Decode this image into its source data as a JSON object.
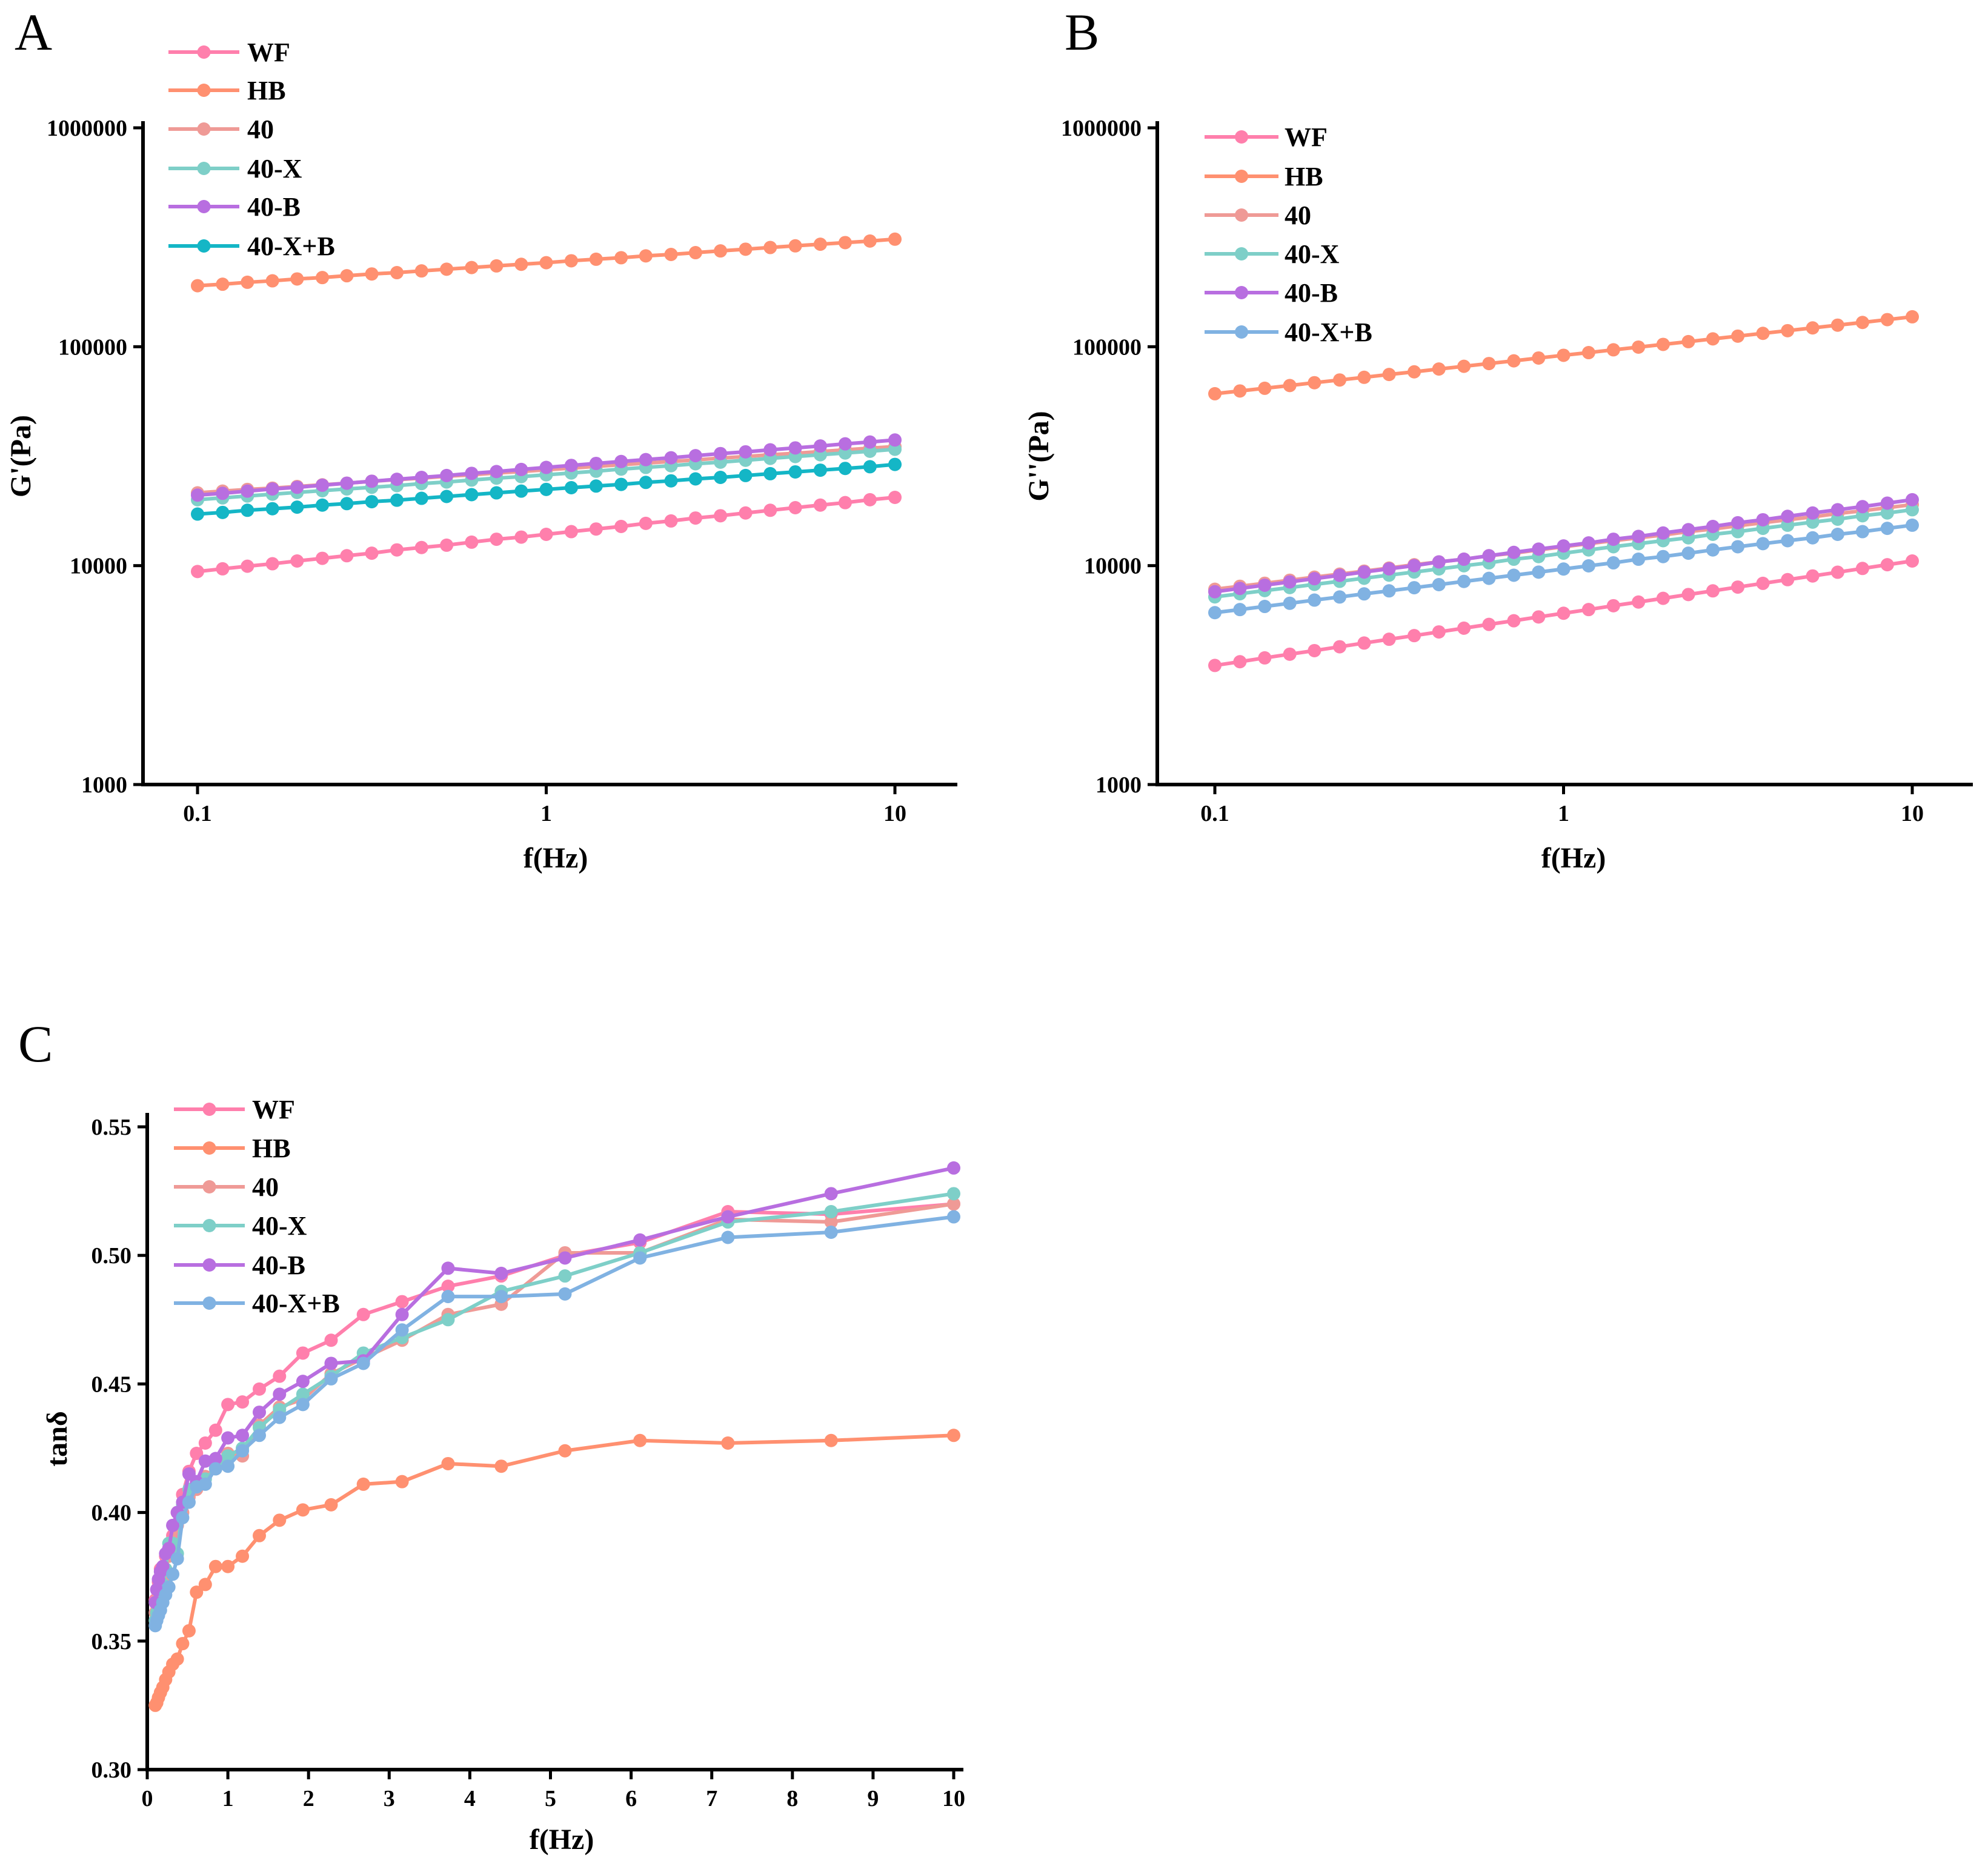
{
  "chart_data": [
    {
      "panel_label": "A",
      "type": "line",
      "xlabel": "f(Hz)",
      "ylabel": "G'(Pa)",
      "xscale": "log",
      "yscale": "log",
      "xlim": [
        0.1,
        10
      ],
      "ylim": [
        1000,
        1000000
      ],
      "xticks": [
        0.1,
        1,
        10
      ],
      "xtick_labels": [
        "0.1",
        "1",
        "10"
      ],
      "yticks": [
        1000,
        10000,
        100000,
        1000000
      ],
      "ytick_labels": [
        "1000",
        "10000",
        "100000",
        "1000000"
      ],
      "grid": false,
      "legend_placement": "top-left",
      "x": [
        0.1,
        0.118,
        0.139,
        0.164,
        0.193,
        0.228,
        0.268,
        0.316,
        0.373,
        0.439,
        0.518,
        0.611,
        0.72,
        0.848,
        1.0,
        1.18,
        1.39,
        1.64,
        1.93,
        2.28,
        2.68,
        3.16,
        3.73,
        4.39,
        5.18,
        6.11,
        7.2,
        8.48,
        10.0
      ],
      "series": [
        {
          "name": "WF",
          "color": "#ff7fac",
          "values": [
            9400,
            9670,
            9940,
            10200,
            10500,
            10800,
            11100,
            11400,
            11800,
            12100,
            12400,
            12800,
            13200,
            13500,
            13900,
            14300,
            14700,
            15100,
            15600,
            16000,
            16500,
            16900,
            17400,
            17900,
            18400,
            18900,
            19400,
            20000,
            20500
          ]
        },
        {
          "name": "HB",
          "color": "#ff9070",
          "values": [
            190000,
            193000,
            197000,
            200000,
            204000,
            207000,
            211000,
            215000,
            218000,
            222000,
            226000,
            230000,
            234000,
            238000,
            242000,
            247000,
            251000,
            255000,
            260000,
            264000,
            269000,
            274000,
            279000,
            284000,
            289000,
            294000,
            299000,
            304000,
            310000
          ]
        },
        {
          "name": "40",
          "color": "#ef9a96",
          "values": [
            21500,
            21900,
            22300,
            22600,
            23000,
            23400,
            23800,
            24300,
            24700,
            25100,
            25600,
            26000,
            26500,
            26900,
            27400,
            27900,
            28400,
            28900,
            29400,
            29900,
            30400,
            31000,
            31500,
            32100,
            32600,
            33200,
            33800,
            34400,
            35000
          ]
        },
        {
          "name": "40-X",
          "color": "#7ecfc8",
          "values": [
            20000,
            20400,
            20800,
            21200,
            21600,
            22000,
            22400,
            22800,
            23200,
            23700,
            24100,
            24600,
            25100,
            25500,
            26000,
            26500,
            27000,
            27600,
            28100,
            28600,
            29200,
            29700,
            30300,
            30900,
            31500,
            32100,
            32700,
            33300,
            34000
          ]
        },
        {
          "name": "40-B",
          "color": "#b86ee0",
          "values": [
            21000,
            21400,
            21900,
            22400,
            22800,
            23300,
            23800,
            24300,
            24800,
            25300,
            25800,
            26400,
            26900,
            27500,
            28100,
            28700,
            29300,
            29900,
            30500,
            31100,
            31800,
            32500,
            33100,
            33800,
            34500,
            35200,
            36000,
            36700,
            37500
          ]
        },
        {
          "name": "40-X+B",
          "color": "#14b6c6",
          "values": [
            17200,
            17500,
            17900,
            18200,
            18500,
            18900,
            19200,
            19600,
            19900,
            20300,
            20700,
            21100,
            21500,
            21900,
            22300,
            22700,
            23100,
            23500,
            24000,
            24400,
            24900,
            25300,
            25800,
            26300,
            26800,
            27300,
            27800,
            28300,
            29000
          ]
        }
      ]
    },
    {
      "panel_label": "B",
      "type": "line",
      "xlabel": "f(Hz)",
      "ylabel": "G''(Pa)",
      "xscale": "log",
      "yscale": "log",
      "xlim": [
        0.1,
        10
      ],
      "ylim": [
        1000,
        1000000
      ],
      "xticks": [
        0.1,
        1,
        10
      ],
      "xtick_labels": [
        "0.1",
        "1",
        "10"
      ],
      "yticks": [
        1000,
        10000,
        100000,
        1000000
      ],
      "ytick_labels": [
        "1000",
        "10000",
        "100000",
        "1000000"
      ],
      "grid": false,
      "legend_placement": "top-left",
      "x": [
        0.1,
        0.118,
        0.139,
        0.164,
        0.193,
        0.228,
        0.268,
        0.316,
        0.373,
        0.439,
        0.518,
        0.611,
        0.72,
        0.848,
        1.0,
        1.18,
        1.39,
        1.64,
        1.93,
        2.28,
        2.68,
        3.16,
        3.73,
        4.39,
        5.18,
        6.11,
        7.2,
        8.48,
        10.0
      ],
      "series": [
        {
          "name": "WF",
          "color": "#ff7fac",
          "values": [
            3500,
            3640,
            3790,
            3940,
            4090,
            4260,
            4430,
            4610,
            4790,
            4980,
            5180,
            5390,
            5600,
            5830,
            6060,
            6300,
            6560,
            6820,
            7090,
            7380,
            7670,
            7980,
            8300,
            8630,
            8970,
            9330,
            9710,
            10100,
            10500
          ]
        },
        {
          "name": "HB",
          "color": "#ff9070",
          "values": [
            61000,
            62800,
            64600,
            66500,
            68500,
            70500,
            72500,
            74700,
            76800,
            79100,
            81400,
            83800,
            86200,
            88800,
            91400,
            94000,
            96800,
            99600,
            102500,
            105500,
            108600,
            111800,
            115100,
            118400,
            121900,
            125500,
            129100,
            133000,
            137000
          ]
        },
        {
          "name": "40",
          "color": "#ef9a96",
          "values": [
            7800,
            8050,
            8310,
            8580,
            8860,
            9150,
            9440,
            9750,
            10100,
            10400,
            10700,
            11100,
            11400,
            11800,
            12200,
            12600,
            13000,
            13400,
            13800,
            14300,
            14700,
            15200,
            15700,
            16200,
            16700,
            17300,
            17800,
            18400,
            19000
          ]
        },
        {
          "name": "40-X",
          "color": "#7ecfc8",
          "values": [
            7200,
            7440,
            7690,
            7940,
            8210,
            8480,
            8760,
            9050,
            9350,
            9660,
            9990,
            10300,
            10700,
            11000,
            11400,
            11800,
            12200,
            12600,
            13000,
            13400,
            13900,
            14300,
            14800,
            15300,
            15800,
            16300,
            16900,
            17400,
            18000
          ]
        },
        {
          "name": "40-B",
          "color": "#b86ee0",
          "values": [
            7600,
            7870,
            8140,
            8430,
            8720,
            9030,
            9350,
            9670,
            10000,
            10400,
            10700,
            11100,
            11500,
            11900,
            12300,
            12700,
            13200,
            13600,
            14100,
            14600,
            15100,
            15700,
            16200,
            16800,
            17400,
            18000,
            18600,
            19300,
            20000
          ]
        },
        {
          "name": "40-X+B",
          "color": "#80b2e2",
          "values": [
            6100,
            6300,
            6510,
            6730,
            6960,
            7190,
            7430,
            7670,
            7930,
            8190,
            8470,
            8750,
            9040,
            9340,
            9650,
            9980,
            10300,
            10700,
            11000,
            11400,
            11800,
            12200,
            12600,
            13000,
            13400,
            13900,
            14300,
            14800,
            15300
          ]
        }
      ]
    },
    {
      "panel_label": "C",
      "type": "line",
      "xlabel": "f(Hz)",
      "ylabel": "tanδ",
      "xscale": "linear",
      "yscale": "linear",
      "xlim": [
        0,
        10
      ],
      "ylim": [
        0.3,
        0.55
      ],
      "xticks": [
        0,
        1,
        2,
        3,
        4,
        5,
        6,
        7,
        8,
        9,
        10
      ],
      "xtick_labels": [
        "0",
        "1",
        "2",
        "3",
        "4",
        "5",
        "6",
        "7",
        "8",
        "9",
        "10"
      ],
      "yticks": [
        0.3,
        0.35,
        0.4,
        0.45,
        0.5,
        0.55
      ],
      "ytick_labels": [
        "0.30",
        "0.35",
        "0.40",
        "0.45",
        "0.50",
        "0.55"
      ],
      "grid": false,
      "legend_placement": "top-left",
      "x": [
        0.1,
        0.118,
        0.139,
        0.164,
        0.193,
        0.228,
        0.268,
        0.316,
        0.373,
        0.439,
        0.518,
        0.611,
        0.72,
        0.848,
        1.0,
        1.18,
        1.39,
        1.64,
        1.93,
        2.28,
        2.68,
        3.16,
        3.73,
        4.39,
        5.18,
        6.11,
        7.2,
        8.48,
        10.0
      ],
      "series": [
        {
          "name": "WF",
          "color": "#ff7fac",
          "values": [
            0.366,
            0.37,
            0.373,
            0.378,
            0.379,
            0.383,
            0.386,
            0.391,
            0.4,
            0.407,
            0.416,
            0.423,
            0.427,
            0.432,
            0.442,
            0.443,
            0.448,
            0.453,
            0.462,
            0.467,
            0.477,
            0.482,
            0.488,
            0.492,
            0.5,
            0.505,
            0.517,
            0.516,
            0.52
          ]
        },
        {
          "name": "HB",
          "color": "#ff9070",
          "values": [
            0.325,
            0.326,
            0.328,
            0.33,
            0.332,
            0.335,
            0.338,
            0.341,
            0.343,
            0.349,
            0.354,
            0.369,
            0.372,
            0.379,
            0.379,
            0.383,
            0.391,
            0.397,
            0.401,
            0.403,
            0.411,
            0.412,
            0.419,
            0.418,
            0.424,
            0.428,
            0.427,
            0.428,
            0.43
          ]
        },
        {
          "name": "40",
          "color": "#ef9a96",
          "values": [
            0.361,
            0.364,
            0.367,
            0.37,
            0.374,
            0.378,
            0.383,
            0.388,
            0.395,
            0.4,
            0.406,
            0.409,
            0.414,
            0.417,
            0.423,
            0.422,
            0.434,
            0.441,
            0.444,
            0.454,
            0.46,
            0.467,
            0.477,
            0.481,
            0.501,
            0.501,
            0.514,
            0.513,
            0.52
          ]
        },
        {
          "name": "40-X",
          "color": "#7ecfc8",
          "values": [
            0.358,
            0.361,
            0.364,
            0.368,
            0.372,
            0.378,
            0.388,
            0.388,
            0.384,
            0.403,
            0.409,
            0.41,
            0.413,
            0.417,
            0.422,
            0.425,
            0.433,
            0.44,
            0.446,
            0.453,
            0.462,
            0.468,
            0.475,
            0.486,
            0.492,
            0.501,
            0.513,
            0.517,
            0.524
          ]
        },
        {
          "name": "40-B",
          "color": "#b86ee0",
          "values": [
            0.365,
            0.37,
            0.374,
            0.377,
            0.379,
            0.384,
            0.386,
            0.395,
            0.4,
            0.404,
            0.415,
            0.412,
            0.42,
            0.421,
            0.429,
            0.43,
            0.439,
            0.446,
            0.451,
            0.458,
            0.459,
            0.477,
            0.495,
            0.493,
            0.499,
            0.506,
            0.515,
            0.524,
            0.534
          ]
        },
        {
          "name": "40-X+B",
          "color": "#80b2e2",
          "values": [
            0.356,
            0.358,
            0.36,
            0.362,
            0.365,
            0.368,
            0.371,
            0.376,
            0.382,
            0.398,
            0.404,
            0.41,
            0.411,
            0.417,
            0.418,
            0.424,
            0.43,
            0.437,
            0.442,
            0.452,
            0.458,
            0.471,
            0.484,
            0.484,
            0.485,
            0.499,
            0.507,
            0.509,
            0.515
          ]
        }
      ]
    }
  ]
}
